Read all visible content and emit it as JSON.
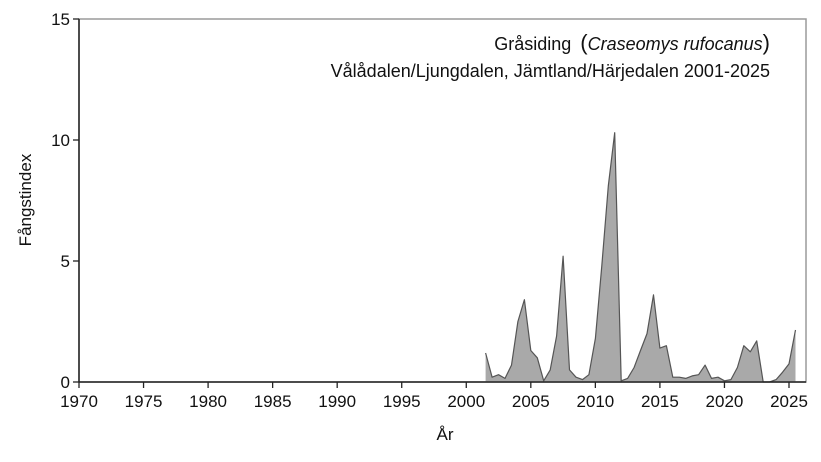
{
  "chart_data": {
    "type": "area",
    "title": "Gråsiding (Craseomys rufocanus)",
    "title_parts": {
      "common_name": "Gråsiding",
      "latin_name": "Craseomys rufocanus"
    },
    "subtitle": "Vålådalen/Ljungdalen, Jämtland/Härjedalen 2001-2025",
    "xlabel": "År",
    "ylabel": "Fångstindex",
    "xlim": [
      1970,
      2026.5
    ],
    "ylim": [
      0,
      15
    ],
    "xticks": [
      1970,
      1975,
      1980,
      1985,
      1990,
      1995,
      2000,
      2005,
      2010,
      2015,
      2020,
      2025
    ],
    "yticks": [
      0,
      5,
      10,
      15
    ],
    "grid": false,
    "legend": null,
    "fill_color": "#a9a9a9",
    "line_color": "#555555",
    "series": [
      {
        "name": "Fångstindex",
        "x": [
          2001.5,
          2002,
          2002.5,
          2003,
          2003.5,
          2004,
          2004.5,
          2005,
          2005.5,
          2006,
          2006.5,
          2007,
          2007.5,
          2008,
          2008.5,
          2009,
          2009.5,
          2010,
          2010.5,
          2011,
          2011.5,
          2012,
          2012.5,
          2013,
          2013.5,
          2014,
          2014.5,
          2015,
          2015.5,
          2016,
          2016.5,
          2017,
          2017.5,
          2018,
          2018.5,
          2019,
          2019.5,
          2020,
          2020.5,
          2021,
          2021.5,
          2022,
          2022.5,
          2023,
          2023.5,
          2024,
          2024.5,
          2025,
          2025.5
        ],
        "values": [
          1.2,
          0.2,
          0.3,
          0.15,
          0.7,
          2.5,
          3.4,
          1.3,
          1.0,
          0.05,
          0.5,
          1.9,
          5.2,
          0.5,
          0.2,
          0.1,
          0.3,
          1.8,
          4.8,
          8.1,
          10.3,
          0.05,
          0.15,
          0.6,
          1.3,
          2.0,
          3.6,
          1.4,
          1.5,
          0.2,
          0.2,
          0.15,
          0.25,
          0.3,
          0.7,
          0.15,
          0.2,
          0.05,
          0.1,
          0.6,
          1.5,
          1.25,
          1.7,
          0.0,
          0.0,
          0.1,
          0.4,
          0.75,
          2.15
        ]
      }
    ]
  }
}
